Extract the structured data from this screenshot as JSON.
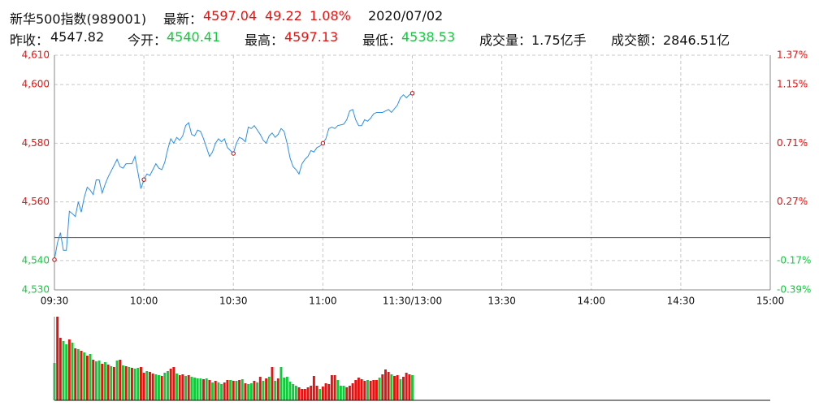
{
  "header": {
    "name": "新华500指数(989001)",
    "latest_label": "最新：",
    "change": "49.22",
    "change_pct": "1.08%",
    "date": "2020/07/02",
    "prev_close_label": "昨收：",
    "open_label": "今开：",
    "open": "4540.41",
    "high_label": "最高：",
    "high": "4597.13",
    "low_label": "最低：",
    "low": "4538.53",
    "volume_label": "成交量：",
    "volume": "1.75亿手",
    "amount_label": "成交额：",
    "amount": "2846.51亿"
  },
  "chart_data": [
    {
      "type": "line",
      "grid": true,
      "baseline": 4547.82,
      "baseline_color": "#555555",
      "up_color": "#e8110f",
      "down_color": "#12c93c",
      "xlim": [
        0,
        240
      ],
      "xticks": [
        {
          "value": 0,
          "label": "09:30"
        },
        {
          "value": 30,
          "label": "10:00"
        },
        {
          "value": 60,
          "label": "10:30"
        },
        {
          "value": 90,
          "label": "11:00"
        },
        {
          "value": 120,
          "label": "11:30/13:00"
        },
        {
          "value": 150,
          "label": "13:30"
        },
        {
          "value": 180,
          "label": "14:00"
        },
        {
          "value": 210,
          "label": "14:30"
        },
        {
          "value": 240,
          "label": "15:00"
        }
      ],
      "ylim": [
        4530,
        4610
      ],
      "yticks": [
        {
          "value": 4530,
          "label": "4,530"
        },
        {
          "value": 4540,
          "label": "4,540"
        },
        {
          "value": 4560,
          "label": "4,560"
        },
        {
          "value": 4580,
          "label": "4,580"
        },
        {
          "value": 4600,
          "label": "4,600"
        },
        {
          "value": 4610,
          "label": "4,610"
        }
      ],
      "y2lim": [
        -0.39,
        1.37
      ],
      "y2ticks": [
        {
          "value": -0.39,
          "label": "-0.39%"
        },
        {
          "value": -0.17,
          "label": "-0.17%"
        },
        {
          "value": 0.27,
          "label": "0.27%"
        },
        {
          "value": 0.71,
          "label": "0.71%"
        },
        {
          "value": 1.15,
          "label": "1.15%"
        },
        {
          "value": 1.37,
          "label": "1.37%"
        }
      ],
      "x": [
        0,
        1,
        2,
        3,
        4,
        5,
        6,
        7,
        8,
        9,
        10,
        11,
        12,
        13,
        14,
        15,
        16,
        17,
        18,
        19,
        20,
        21,
        22,
        23,
        24,
        25,
        26,
        27,
        28,
        29,
        30,
        31,
        32,
        33,
        34,
        35,
        36,
        37,
        38,
        39,
        40,
        41,
        42,
        43,
        44,
        45,
        46,
        47,
        48,
        49,
        50,
        51,
        52,
        53,
        54,
        55,
        56,
        57,
        58,
        59,
        60,
        61,
        62,
        63,
        64,
        65,
        66,
        67,
        68,
        69,
        70,
        71,
        72,
        73,
        74,
        75,
        76,
        77,
        78,
        79,
        80,
        81,
        82,
        83,
        84,
        85,
        86,
        87,
        88,
        89,
        90,
        91,
        92,
        93,
        94,
        95,
        97,
        98,
        99,
        100,
        101,
        102,
        103,
        104,
        105,
        106,
        107,
        108,
        110,
        111,
        112,
        113,
        115,
        116,
        117,
        118,
        119,
        120
      ],
      "series": [
        {
          "color": "#2b8fe6",
          "values": [
            4540.3,
            4546,
            4549.5,
            4543.5,
            4543.5,
            4556.8,
            4556,
            4555,
            4560,
            4556.5,
            4561.6,
            4565,
            4564,
            4562.5,
            4567.5,
            4567.5,
            4563,
            4566,
            4568.5,
            4570.5,
            4572.5,
            4574.5,
            4572,
            4571.5,
            4573,
            4573,
            4573,
            4575.5,
            4570,
            4564.5,
            4567.6,
            4569.5,
            4569,
            4571,
            4573,
            4571.5,
            4571,
            4573.5,
            4578,
            4581.5,
            4580,
            4582,
            4581,
            4582.5,
            4586,
            4587,
            4583,
            4582.5,
            4584.5,
            4584,
            4581.5,
            4578.5,
            4575.5,
            4577,
            4580,
            4581.5,
            4580.5,
            4581.5,
            4578.5,
            4577.5,
            4576.5,
            4580,
            4582,
            4581.5,
            4580.5,
            4585.5,
            4585,
            4586,
            4584.5,
            4583,
            4581,
            4580,
            4582.5,
            4583.5,
            4582,
            4583,
            4585,
            4584,
            4580,
            4575,
            4572,
            4571,
            4569.5,
            4573,
            4574.5,
            4575.5,
            4577.5,
            4577,
            4578.5,
            4579,
            4580,
            4581.5,
            4585,
            4585.5,
            4585,
            4586,
            4586.5,
            4588,
            4591,
            4591.5,
            4588,
            4586,
            4586,
            4588,
            4587.5,
            4588.5,
            4590,
            4590.5,
            4590.5,
            4591,
            4591.5,
            4590.5,
            4593,
            4595.5,
            4596.5,
            4595.5,
            4596.5,
            4597.04
          ]
        }
      ]
    },
    {
      "type": "bar",
      "ylim": [
        0,
        103
      ],
      "xlim": [
        0,
        240
      ],
      "values": [
        46,
        103,
        77,
        73,
        69,
        75,
        71,
        64,
        63,
        61,
        59,
        55,
        57,
        50,
        48,
        49,
        45,
        47,
        44,
        42,
        41,
        49,
        50,
        43,
        42,
        41,
        40,
        39,
        40,
        41,
        34,
        36,
        35,
        33,
        32,
        31,
        30,
        34,
        36,
        39,
        41,
        33,
        31,
        32,
        30,
        31,
        29,
        28,
        27,
        27,
        26,
        27,
        25,
        22,
        24,
        22,
        20,
        22,
        25,
        25,
        24,
        24,
        25,
        26,
        21,
        20,
        21,
        24,
        22,
        29,
        24,
        27,
        29,
        41,
        24,
        27,
        41,
        28,
        29,
        23,
        20,
        18,
        16,
        14,
        14,
        16,
        18,
        30,
        18,
        14,
        17,
        21,
        20,
        31,
        31,
        25,
        18,
        18,
        16,
        18,
        21,
        25,
        28,
        26,
        24,
        25,
        24,
        25,
        25,
        28,
        32,
        38,
        35,
        32,
        30,
        31,
        26,
        29,
        34,
        32,
        31
      ],
      "colors": [
        "#12c93c",
        "#e8110f",
        "#e8110f",
        "#12c93c",
        "#12c93c",
        "#e8110f",
        "#12c93c",
        "#e8110f",
        "#12c93c",
        "#e8110f",
        "#12c93c",
        "#e8110f",
        "#12c93c",
        "#e8110f",
        "#12c93c",
        "#12c93c",
        "#e8110f",
        "#12c93c",
        "#e8110f",
        "#12c93c",
        "#e8110f",
        "#12c93c",
        "#e8110f",
        "#12c93c",
        "#e8110f",
        "#12c93c",
        "#e8110f",
        "#12c93c",
        "#12c93c",
        "#e8110f",
        "#e8110f",
        "#12c93c",
        "#e8110f",
        "#e8110f",
        "#12c93c",
        "#12c93c",
        "#e8110f",
        "#12c93c",
        "#12c93c",
        "#e8110f",
        "#e8110f",
        "#12c93c",
        "#e8110f",
        "#e8110f",
        "#12c93c",
        "#e8110f",
        "#12c93c",
        "#12c93c",
        "#12c93c",
        "#12c93c",
        "#e8110f",
        "#12c93c",
        "#e8110f",
        "#12c93c",
        "#e8110f",
        "#12c93c",
        "#12c93c",
        "#e8110f",
        "#e8110f",
        "#12c93c",
        "#e8110f",
        "#12c93c",
        "#e8110f",
        "#12c93c",
        "#e8110f",
        "#12c93c",
        "#12c93c",
        "#e8110f",
        "#12c93c",
        "#e8110f",
        "#12c93c",
        "#e8110f",
        "#12c93c",
        "#e8110f",
        "#12c93c",
        "#e8110f",
        "#12c93c",
        "#12c93c",
        "#12c93c",
        "#12c93c",
        "#12c93c",
        "#12c93c",
        "#e8110f",
        "#e8110f",
        "#e8110f",
        "#e8110f",
        "#e8110f",
        "#e8110f",
        "#e8110f",
        "#12c93c",
        "#e8110f",
        "#e8110f",
        "#e8110f",
        "#e8110f",
        "#e8110f",
        "#12c93c",
        "#12c93c",
        "#12c93c",
        "#e8110f",
        "#e8110f",
        "#e8110f",
        "#e8110f",
        "#e8110f",
        "#e8110f",
        "#e8110f",
        "#12c93c",
        "#e8110f",
        "#e8110f",
        "#e8110f",
        "#12c93c",
        "#e8110f",
        "#e8110f",
        "#e8110f",
        "#12c93c",
        "#e8110f",
        "#e8110f",
        "#12c93c",
        "#e8110f",
        "#e8110f",
        "#e8110f",
        "#12c93c"
      ]
    }
  ]
}
